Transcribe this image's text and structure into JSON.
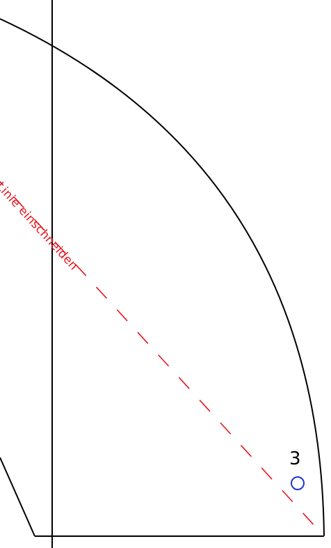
{
  "drawing": {
    "cut_line_label": "Linie einschneiden",
    "point_label": "3",
    "colors": {
      "outline": "#000000",
      "cut_line": "#e8141e",
      "marker": "#1a36d6",
      "background": "#ffffff"
    }
  }
}
